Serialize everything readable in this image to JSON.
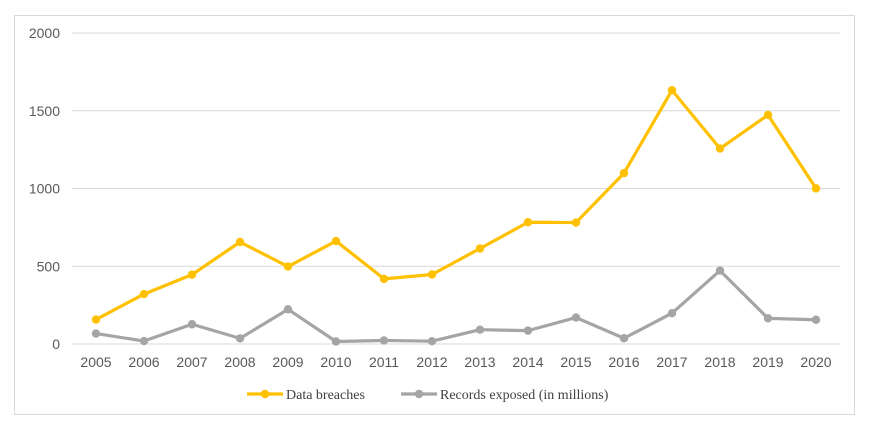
{
  "chart_data": {
    "type": "line",
    "title": "",
    "xlabel": "",
    "ylabel": "",
    "x": [
      "2005",
      "2006",
      "2007",
      "2008",
      "2009",
      "2010",
      "2011",
      "2012",
      "2013",
      "2014",
      "2015",
      "2016",
      "2017",
      "2018",
      "2019",
      "2020"
    ],
    "ylim": [
      0,
      2000
    ],
    "yticks": [
      0,
      500,
      1000,
      1500,
      2000
    ],
    "grid": true,
    "legend": "bottom",
    "series": [
      {
        "name": "Data breaches",
        "color": "#FFC000",
        "values": [
          157,
          321,
          446,
          656,
          498,
          662,
          419,
          447,
          614,
          783,
          781,
          1099,
          1632,
          1257,
          1473,
          1001
        ]
      },
      {
        "name": "Records exposed (in millions)",
        "color": "#A5A5A5",
        "values": [
          67,
          19,
          127,
          36,
          223,
          16,
          23,
          18,
          92,
          86,
          170,
          37,
          198,
          472,
          165,
          156
        ]
      }
    ]
  }
}
